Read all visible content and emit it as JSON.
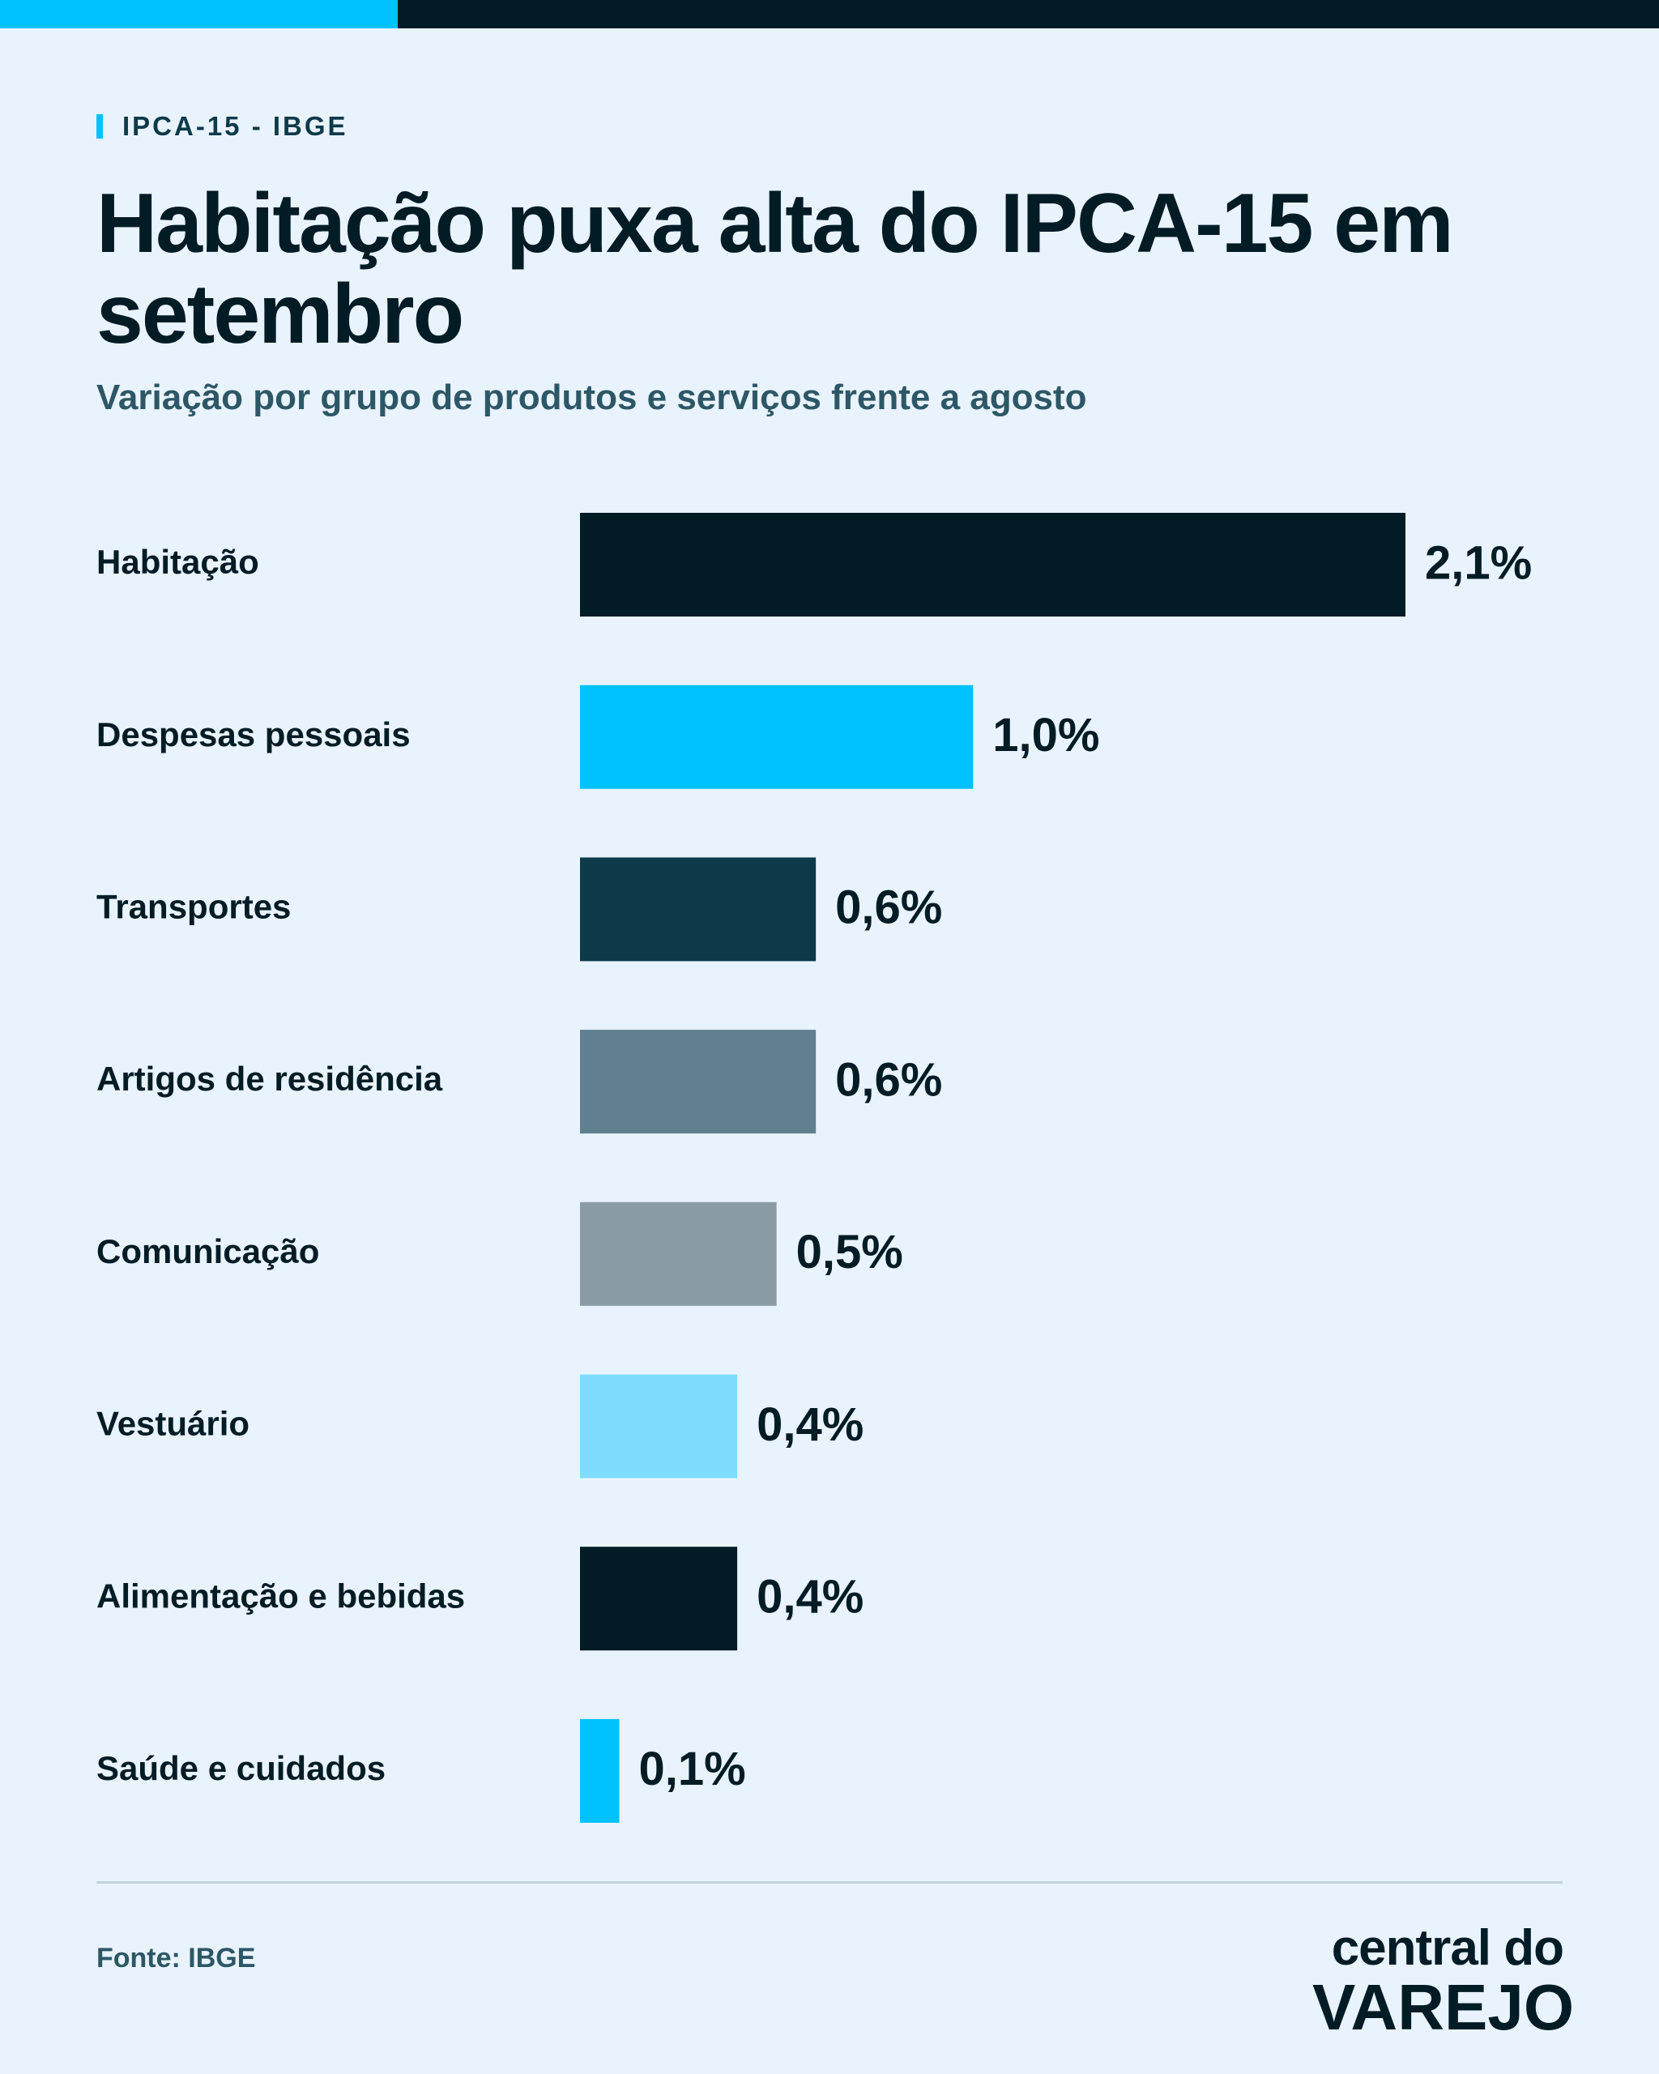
{
  "header": {
    "kicker": "IPCA-15 - IBGE",
    "title": "Habitação puxa alta do IPCA-15 em setembro",
    "subtitle": "Variação por grupo de produtos e serviços frente a agosto"
  },
  "colors": {
    "accent": "#00c2ff",
    "dark": "#021c26",
    "background": "#e9f3fd"
  },
  "chart_data": {
    "type": "bar",
    "orientation": "horizontal",
    "categories": [
      "Habitação",
      "Despesas pessoais",
      "Transportes",
      "Artigos de residência",
      "Comunicação",
      "Vestuário",
      "Alimentação e bebidas",
      "Saúde e cuidados"
    ],
    "values": [
      2.1,
      1.0,
      0.6,
      0.6,
      0.5,
      0.4,
      0.4,
      0.1
    ],
    "value_labels": [
      "2,1%",
      "1,0%",
      "0,6%",
      "0,6%",
      "0,5%",
      "0,4%",
      "0,4%",
      "0,1%"
    ],
    "bar_colors": [
      "#021c26",
      "#00c2ff",
      "#0d3a49",
      "#60808f",
      "#8a9ba5",
      "#80dcff",
      "#021c26",
      "#00c2ff"
    ],
    "unit": "%",
    "xlim": [
      0,
      2.1
    ],
    "grid": false,
    "legend": "none"
  },
  "footer": {
    "source": "Fonte: IBGE",
    "logo_line1": "central do",
    "logo_line2": "VAREJO"
  }
}
